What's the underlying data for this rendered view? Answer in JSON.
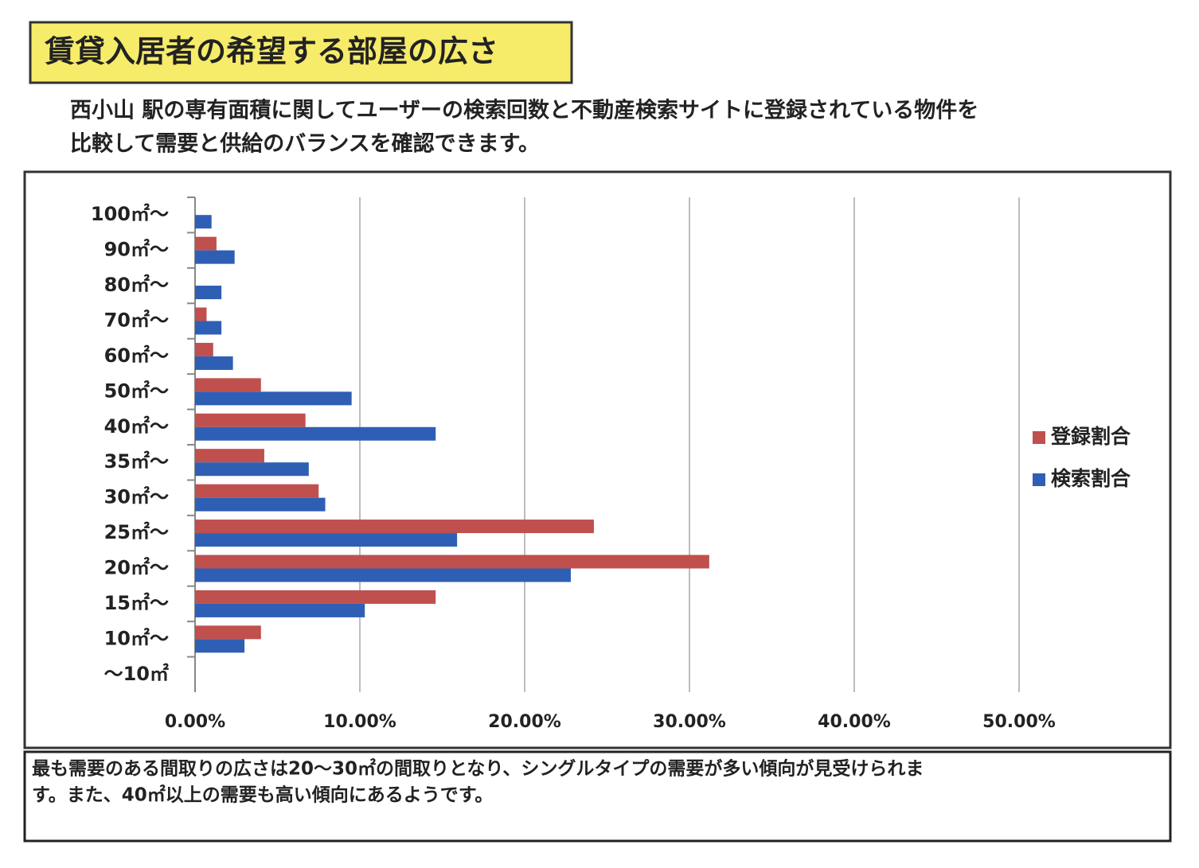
{
  "title": "賃貸入居者の希望する部屋の広さ",
  "description_lines": [
    "西小山 駅の専有面積に関してユーザーの検索回数と不動産検索サイトに登録されている物件を",
    "比較して需要と供給のバランスを確認できます。"
  ],
  "chart_data": {
    "type": "barh",
    "categories": [
      "100㎡～",
      "90㎡～",
      "80㎡～",
      "70㎡～",
      "60㎡～",
      "50㎡～",
      "40㎡～",
      "35㎡～",
      "30㎡～",
      "25㎡～",
      "20㎡～",
      "15㎡～",
      "10㎡～",
      "～10㎡"
    ],
    "series": [
      {
        "name": "登録割合",
        "color": "#c0504d",
        "values": [
          0,
          1.3,
          0,
          0.7,
          1.1,
          4.0,
          6.7,
          4.2,
          7.5,
          24.2,
          31.2,
          14.6,
          4.0,
          0
        ]
      },
      {
        "name": "検索割合",
        "color": "#2e5fb5",
        "values": [
          1.0,
          2.4,
          1.6,
          1.6,
          2.3,
          9.5,
          14.6,
          6.9,
          7.9,
          15.9,
          22.8,
          10.3,
          3.0,
          0
        ]
      }
    ],
    "xlim": [
      0,
      50
    ],
    "xticks": [
      {
        "value": 0,
        "label": "0.00%"
      },
      {
        "value": 10,
        "label": "10.00%"
      },
      {
        "value": 20,
        "label": "20.00%"
      },
      {
        "value": 30,
        "label": "30.00%"
      },
      {
        "value": 40,
        "label": "40.00%"
      },
      {
        "value": 50,
        "label": "50.00%"
      }
    ],
    "grid": true,
    "legend": "right"
  },
  "note_lines": [
    "最も需要のある間取りの広さは20～30㎡の間取りとなり、シングルタイプの需要が多い傾向が見受けられま",
    "す。また、40㎡以上の需要も高い傾向にあるようです。"
  ]
}
